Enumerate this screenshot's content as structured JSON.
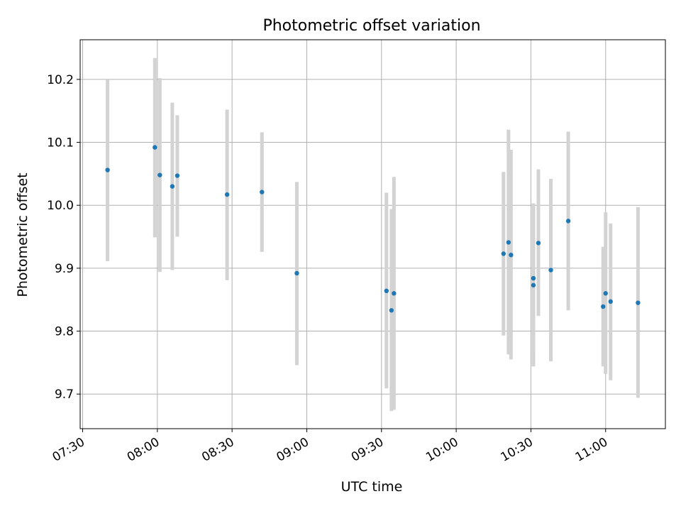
{
  "chart_data": {
    "type": "scatter",
    "title": "Photometric offset variation",
    "xlabel": "UTC time",
    "ylabel": "Photometric offset",
    "x_ticks": [
      "07:30",
      "08:00",
      "08:30",
      "09:00",
      "09:30",
      "10:00",
      "10:30",
      "11:00"
    ],
    "y_ticks": [
      "9.7",
      "9.8",
      "9.9",
      "10.0",
      "10.1",
      "10.2"
    ],
    "xlim": [
      "07:29",
      "11:24"
    ],
    "ylim": [
      9.645,
      10.263
    ],
    "grid": true,
    "marker_color": "#1f77b4",
    "errorbar_color": "#d3d3d3",
    "points": [
      {
        "t": "07:40",
        "y": 10.056,
        "lo": 9.911,
        "hi": 10.2
      },
      {
        "t": "07:59",
        "y": 10.092,
        "lo": 9.949,
        "hi": 10.234
      },
      {
        "t": "08:01",
        "y": 10.048,
        "lo": 9.894,
        "hi": 10.202
      },
      {
        "t": "08:06",
        "y": 10.03,
        "lo": 9.897,
        "hi": 10.163
      },
      {
        "t": "08:08",
        "y": 10.047,
        "lo": 9.95,
        "hi": 10.143
      },
      {
        "t": "08:28",
        "y": 10.017,
        "lo": 9.881,
        "hi": 10.152
      },
      {
        "t": "08:42",
        "y": 10.021,
        "lo": 9.926,
        "hi": 10.116
      },
      {
        "t": "08:56",
        "y": 9.892,
        "lo": 9.746,
        "hi": 10.037
      },
      {
        "t": "09:32",
        "y": 9.864,
        "lo": 9.709,
        "hi": 10.02
      },
      {
        "t": "09:34",
        "y": 9.833,
        "lo": 9.673,
        "hi": 9.994
      },
      {
        "t": "09:35",
        "y": 9.86,
        "lo": 9.675,
        "hi": 10.045
      },
      {
        "t": "10:19",
        "y": 9.923,
        "lo": 9.793,
        "hi": 10.053
      },
      {
        "t": "10:21",
        "y": 9.941,
        "lo": 9.763,
        "hi": 10.12
      },
      {
        "t": "10:22",
        "y": 9.921,
        "lo": 9.755,
        "hi": 10.088
      },
      {
        "t": "10:31",
        "y": 9.873,
        "lo": 9.744,
        "hi": 10.002
      },
      {
        "t": "10:31",
        "y": 9.884,
        "lo": 9.765,
        "hi": 10.003
      },
      {
        "t": "10:33",
        "y": 9.94,
        "lo": 9.824,
        "hi": 10.057
      },
      {
        "t": "10:38",
        "y": 9.897,
        "lo": 9.752,
        "hi": 10.042
      },
      {
        "t": "10:45",
        "y": 9.975,
        "lo": 9.833,
        "hi": 10.117
      },
      {
        "t": "10:59",
        "y": 9.839,
        "lo": 9.744,
        "hi": 9.934
      },
      {
        "t": "11:00",
        "y": 9.86,
        "lo": 9.732,
        "hi": 9.989
      },
      {
        "t": "11:02",
        "y": 9.847,
        "lo": 9.722,
        "hi": 9.971
      },
      {
        "t": "11:13",
        "y": 9.845,
        "lo": 9.694,
        "hi": 9.997
      }
    ]
  }
}
